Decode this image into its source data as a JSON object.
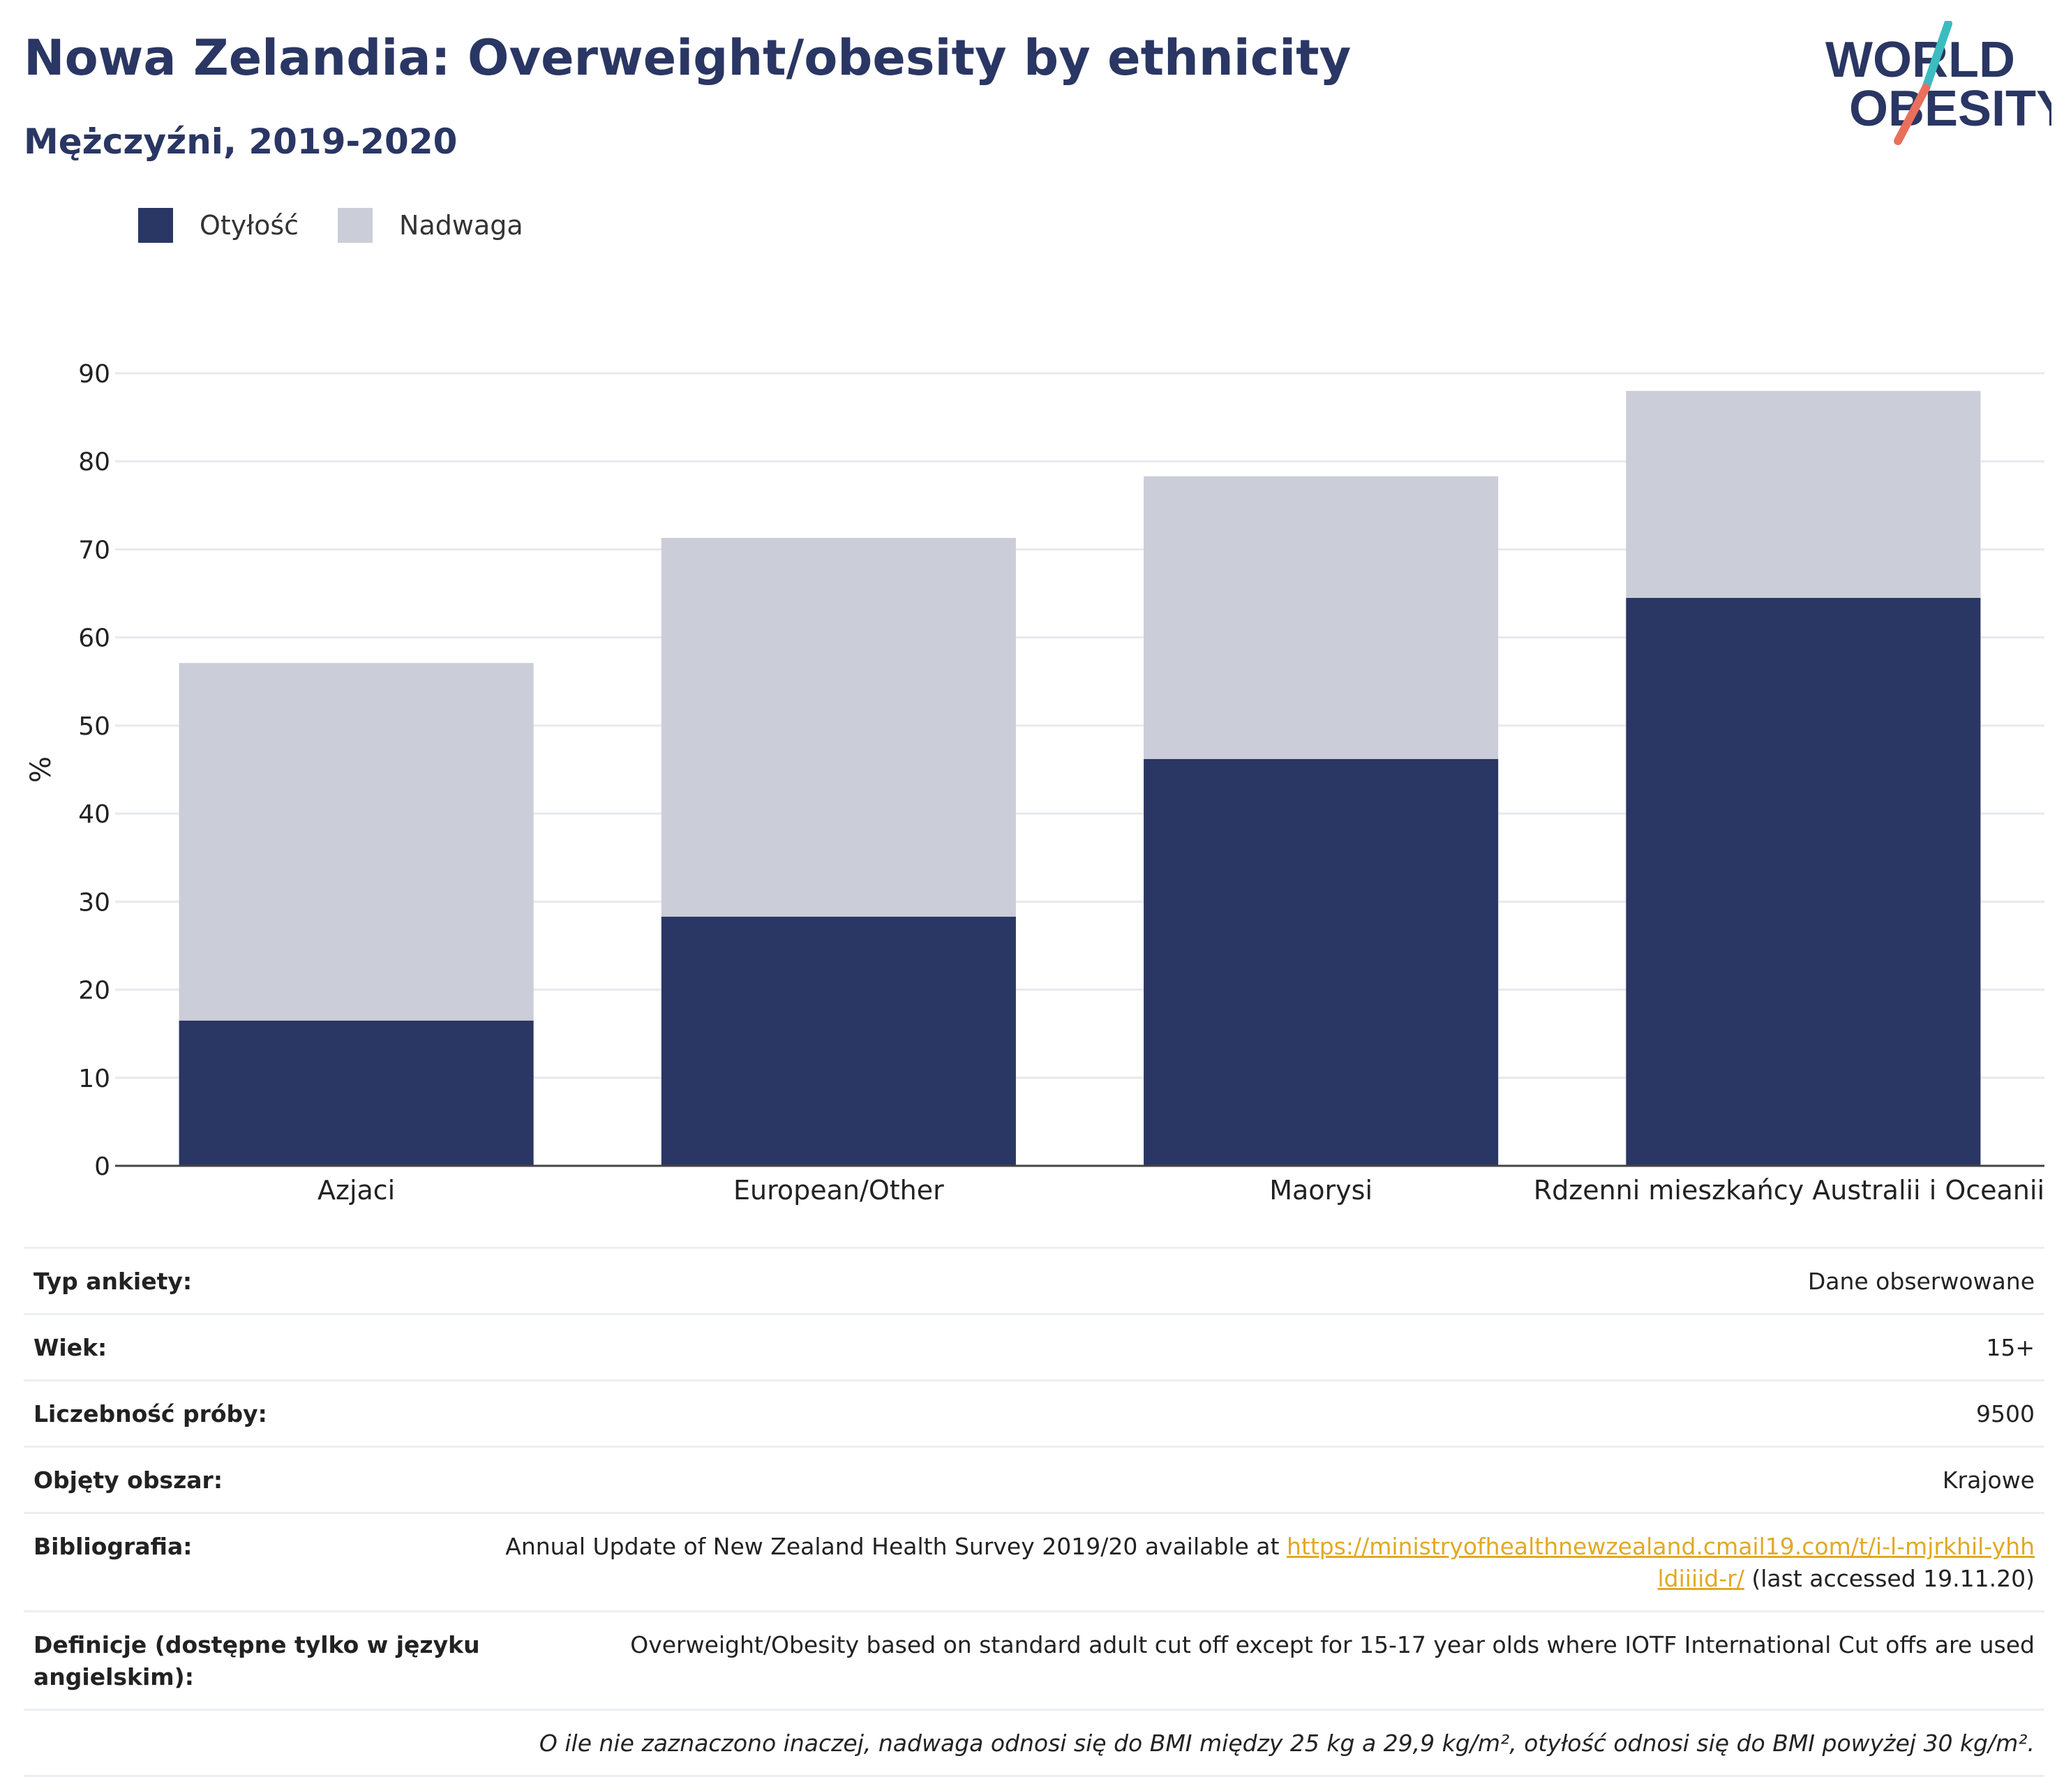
{
  "title": "Nowa Zelandia: Overweight/obesity by ethnicity",
  "subtitle": "Mężczyźni, 2019-2020",
  "logo": {
    "line1": "WORLD",
    "line2": "OBESITY",
    "colors": {
      "text": "#2a3663",
      "slash_teal": "#3bbcc1",
      "slash_coral": "#e8705c"
    }
  },
  "legend": [
    {
      "label": "Otyłość",
      "color": "#2a3663"
    },
    {
      "label": "Nadwaga",
      "color": "#cbcdd8"
    }
  ],
  "chart_data": {
    "type": "bar",
    "stacked": true,
    "categories": [
      "Azjaci",
      "European/Other",
      "Maorysi",
      "Rdzenni mieszkańcy Australii i Oceanii"
    ],
    "series": [
      {
        "name": "Otyłość",
        "color": "#2a3663",
        "values": [
          16.5,
          28.3,
          46.2,
          64.5
        ]
      },
      {
        "name": "Nadwaga",
        "color": "#cbcdd8",
        "values": [
          40.6,
          43.0,
          32.1,
          23.5
        ]
      }
    ],
    "ylabel": "%",
    "ylim": [
      0,
      90
    ],
    "yticks": [
      "0",
      "10",
      "20",
      "30",
      "40",
      "50",
      "60",
      "70",
      "80",
      "90"
    ],
    "grid": true,
    "legend_position": "top-left"
  },
  "meta": {
    "survey_type": {
      "label": "Typ ankiety:",
      "value": "Dane obserwowane"
    },
    "age": {
      "label": "Wiek:",
      "value": "15+"
    },
    "sample_size": {
      "label": "Liczebność próby:",
      "value": "9500"
    },
    "area": {
      "label": "Objęty obszar:",
      "value": "Krajowe"
    },
    "bibliography": {
      "label": "Bibliografia:",
      "text_before": "Annual Update of New Zealand Health Survey 2019/20 available at ",
      "link": "https://ministryofhealthnewzealand.cmail19.com/t/i-l-mjrkhil-yhhldiiiid-r/",
      "text_after": " (last accessed 19.11.20)"
    },
    "definitions": {
      "label": "Definicje (dostępne tylko w języku angielskim):",
      "value": "Overweight/Obesity based on standard adult cut off except for 15-17 year olds where IOTF International Cut offs are used"
    },
    "note": "O ile nie zaznaczono inaczej, nadwaga odnosi się do BMI między 25 kg a 29,9 kg/m², otyłość odnosi się do BMI powyżej 30 kg/m²."
  }
}
